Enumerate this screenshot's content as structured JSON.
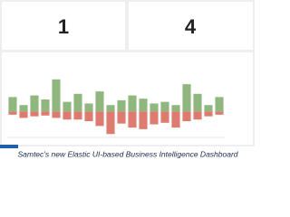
{
  "panels": [
    {
      "metric": "1"
    },
    {
      "metric": "4"
    }
  ],
  "caption": "Samtec's new Elastic UI-based Business Intelligence Dashboard",
  "chart_data": {
    "type": "bar",
    "categories": [
      null,
      null,
      null,
      null,
      null,
      null,
      null,
      null,
      null,
      null,
      null,
      null,
      null,
      null,
      null,
      null,
      null,
      null,
      null,
      null
    ],
    "series": [
      {
        "color": "#8fb77e",
        "values": [
          18,
          8,
          20,
          15,
          40,
          12,
          22,
          10,
          25,
          8,
          14,
          20,
          16,
          10,
          12,
          8,
          34,
          22,
          8,
          18
        ]
      },
      {
        "color": "#de7b70",
        "values": [
          -4,
          -8,
          -6,
          -5,
          -8,
          -10,
          -10,
          -12,
          -18,
          -28,
          -15,
          -20,
          -22,
          -16,
          -14,
          -20,
          -12,
          -10,
          -6,
          -4
        ]
      }
    ],
    "ylim": [
      -30,
      60
    ]
  }
}
